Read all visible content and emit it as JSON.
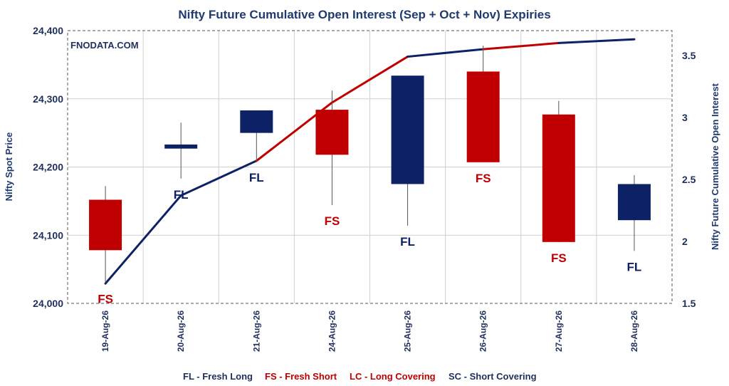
{
  "chart_data": {
    "type": "candlestick",
    "title": "Nifty Future Cumulative Open Interest (Sep + Oct + Nov) Expiries",
    "watermark": "FNODATA.COM",
    "ylabel_left": "Nifty Spot Price",
    "ylabel_right": "Nifty Future Cumulative Open Interest",
    "ylim_left": [
      24000,
      24400
    ],
    "yticks_left": [
      "24,000",
      "24,100",
      "24,200",
      "24,300",
      "24,400"
    ],
    "ytick_values_left": [
      24000,
      24100,
      24200,
      24300,
      24400
    ],
    "ylim_right": [
      1.5,
      3.7
    ],
    "yticks_right": [
      "1.5",
      "2",
      "2.5",
      "3",
      "3.5"
    ],
    "ytick_values_right": [
      1.5,
      2,
      2.5,
      3,
      3.5
    ],
    "grid": true,
    "colors": {
      "fresh_long": "#0d2266",
      "fresh_short": "#c00000",
      "title": "#1f3a6e"
    },
    "categories": [
      "19-Aug-26",
      "20-Aug-26",
      "21-Aug-26",
      "24-Aug-26",
      "25-Aug-26",
      "26-Aug-26",
      "27-Aug-26",
      "28-Aug-26"
    ],
    "candles": [
      {
        "date": "19-Aug-26",
        "open": 24152,
        "high": 24172,
        "low": 24030,
        "close": 24078,
        "label": "FS"
      },
      {
        "date": "20-Aug-26",
        "open": 24227,
        "high": 24265,
        "low": 24183,
        "close": 24233,
        "label": "FL"
      },
      {
        "date": "21-Aug-26",
        "open": 24250,
        "high": 24283,
        "low": 24208,
        "close": 24283,
        "label": "FL"
      },
      {
        "date": "24-Aug-26",
        "open": 24284,
        "high": 24312,
        "low": 24144,
        "close": 24218,
        "label": "FS"
      },
      {
        "date": "25-Aug-26",
        "open": 24175,
        "high": 24334,
        "low": 24114,
        "close": 24334,
        "label": "FL"
      },
      {
        "date": "26-Aug-26",
        "open": 24340,
        "high": 24378,
        "low": 24207,
        "close": 24207,
        "label": "FS"
      },
      {
        "date": "27-Aug-26",
        "open": 24277,
        "high": 24297,
        "low": 24090,
        "close": 24090,
        "label": "FS"
      },
      {
        "date": "28-Aug-26",
        "open": 24122,
        "high": 24188,
        "low": 24077,
        "close": 24175,
        "label": "FL"
      }
    ],
    "oi_series": {
      "name": "Nifty Future Cumulative Open Interest",
      "points": [
        {
          "date": "19-Aug-26",
          "value": 1.66
        },
        {
          "date": "20-Aug-26",
          "value": 2.37
        },
        {
          "date": "21-Aug-26",
          "value": 2.65
        },
        {
          "date": "24-Aug-26",
          "value": 3.12
        },
        {
          "date": "25-Aug-26",
          "value": 3.49
        },
        {
          "date": "26-Aug-26",
          "value": 3.55
        },
        {
          "date": "27-Aug-26",
          "value": 3.6
        },
        {
          "date": "28-Aug-26",
          "value": 3.63
        }
      ],
      "segment_labels": [
        "FL",
        "FL",
        "FS",
        "FS",
        "FL",
        "FS",
        "FL"
      ]
    },
    "legend": [
      {
        "text": "FL - Fresh Long",
        "color": "#1f2f5c"
      },
      {
        "text": "FS - Fresh Short",
        "color": "#c00000"
      },
      {
        "text": "LC - Long Covering",
        "color": "#c00000"
      },
      {
        "text": "SC - Short Covering",
        "color": "#1f2f5c"
      }
    ],
    "legend_position": "bottom"
  }
}
